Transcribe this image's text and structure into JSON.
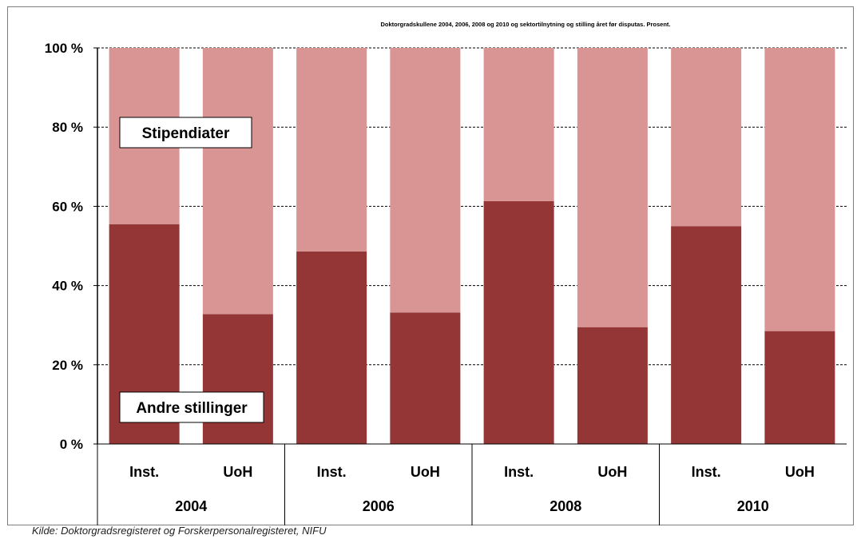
{
  "source_note": "Kilde: Doktorgradsregisteret og Forskerpersonalregisteret, NIFU",
  "colors": {
    "andre": "#943636",
    "stip": "#d99594",
    "grid": "#000000"
  },
  "chart_data": {
    "type": "bar",
    "stacked": true,
    "percent": true,
    "title": "Doktorgradskullene 2004, 2006, 2008 og 2010 og sektortilnytning og stilling året før disputas. Prosent.",
    "groups": [
      "2004",
      "2006",
      "2008",
      "2010"
    ],
    "categories": [
      "Inst.",
      "UoH",
      "Inst.",
      "UoH",
      "Inst.",
      "UoH",
      "Inst.",
      "UoH"
    ],
    "series": [
      {
        "name": "Andre stillinger",
        "values": [
          55.5,
          32.8,
          48.6,
          33.2,
          61.3,
          29.5,
          55.0,
          28.5
        ]
      },
      {
        "name": "Stipendiater",
        "values": [
          44.5,
          67.2,
          51.4,
          66.8,
          38.7,
          70.5,
          45.0,
          71.5
        ]
      }
    ],
    "ylim": [
      0,
      100
    ],
    "yticks": [
      "0 %",
      "20 %",
      "40 %",
      "60 %",
      "80 %",
      "100 %"
    ],
    "grid": true,
    "annotations": [
      "Stipendiater",
      "Andre stillinger"
    ]
  }
}
